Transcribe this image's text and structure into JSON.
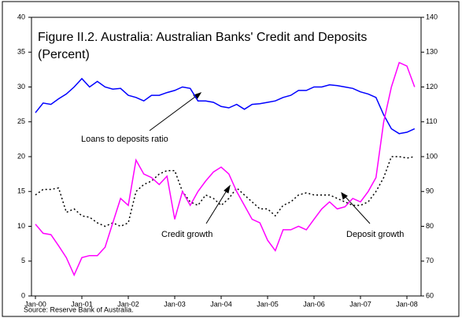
{
  "chart_data": {
    "type": "line",
    "title": "Figure II.2. Australia: Australian Banks' Credit and Deposits",
    "subtitle": "(Percent)",
    "source": "Source: Reserve Bank of Australia.",
    "categories": [
      "Jan-00",
      null,
      null,
      null,
      null,
      null,
      "Jan-01",
      null,
      null,
      null,
      null,
      null,
      "Jan-02",
      null,
      null,
      null,
      null,
      null,
      "Jan-03",
      null,
      null,
      null,
      null,
      null,
      "Jan-04",
      null,
      null,
      null,
      null,
      null,
      "Jan-05",
      null,
      null,
      null,
      null,
      null,
      "Jan-06",
      null,
      null,
      null,
      null,
      null,
      "Jan-07",
      null,
      null,
      null,
      null,
      null,
      "Jan-08",
      null
    ],
    "ylim": [
      0,
      40
    ],
    "yticks": [
      0,
      5,
      10,
      15,
      20,
      25,
      30,
      35,
      40
    ],
    "y2lim": [
      60,
      140
    ],
    "y2ticks": [
      60,
      70,
      80,
      90,
      100,
      110,
      120,
      130,
      140
    ],
    "series": [
      {
        "name": "Loans to deposits ratio",
        "color": "#0000ff",
        "axis": "y2",
        "dash": "solid",
        "values": [
          112.6,
          115.4,
          115,
          116.6,
          118,
          120,
          122.4,
          120,
          121.6,
          120,
          119.4,
          119.6,
          117.6,
          117,
          116,
          117.6,
          117.6,
          118.4,
          119,
          120,
          119.6,
          116,
          116,
          115.6,
          114.4,
          114,
          115,
          113.6,
          115,
          115.2,
          115.6,
          116,
          117,
          117.6,
          119,
          119,
          120,
          120,
          120.6,
          120.4,
          120,
          119.6,
          118.6,
          118,
          117,
          112,
          108,
          106.6,
          107,
          108
        ]
      },
      {
        "name": "Credit growth",
        "color": "#000000",
        "axis": "y",
        "dash": "dotted",
        "values": [
          14.5,
          15.3,
          15.3,
          15.5,
          12.0,
          12.5,
          11.5,
          11.3,
          10.5,
          10.0,
          10.5,
          10.0,
          10.5,
          15.0,
          16.0,
          16.5,
          17.5,
          18.0,
          18.0,
          15.0,
          13.5,
          13.0,
          14.5,
          14.0,
          13.0,
          14.0,
          15.5,
          14.5,
          13.5,
          12.5,
          12.5,
          11.5,
          13.0,
          13.5,
          14.5,
          14.8,
          14.5,
          14.5,
          14.5,
          14.0,
          13.5,
          13.0,
          13.0,
          13.5,
          15.0,
          17.0,
          20.0,
          20.0,
          19.8,
          20.0
        ]
      },
      {
        "name": "Deposit growth",
        "color": "#ff00ff",
        "axis": "y",
        "dash": "solid",
        "values": [
          10.3,
          9.0,
          8.8,
          7.2,
          5.5,
          3.0,
          5.5,
          5.8,
          5.8,
          7.0,
          10.5,
          14.0,
          13.0,
          19.5,
          17.5,
          17.0,
          16.0,
          17.2,
          11.0,
          15.0,
          13.0,
          15.0,
          16.5,
          17.8,
          18.5,
          17.5,
          15.0,
          13.0,
          11.0,
          10.5,
          8.0,
          6.5,
          9.5,
          9.5,
          10.0,
          9.5,
          11.0,
          12.5,
          13.5,
          12.5,
          12.8,
          14.0,
          13.5,
          15.0,
          17.0,
          25.0,
          30.0,
          33.5,
          33.0,
          30.0
        ]
      }
    ]
  }
}
